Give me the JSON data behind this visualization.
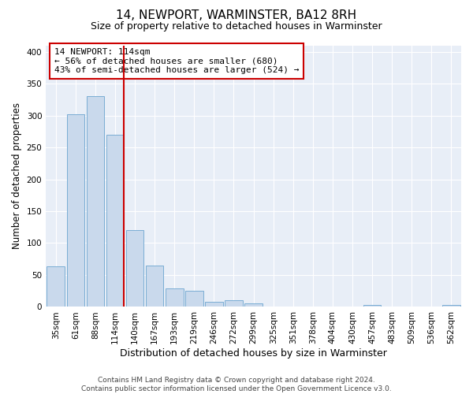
{
  "title": "14, NEWPORT, WARMINSTER, BA12 8RH",
  "subtitle": "Size of property relative to detached houses in Warminster",
  "xlabel": "Distribution of detached houses by size in Warminster",
  "ylabel": "Number of detached properties",
  "bin_labels": [
    "35sqm",
    "61sqm",
    "88sqm",
    "114sqm",
    "140sqm",
    "167sqm",
    "193sqm",
    "219sqm",
    "246sqm",
    "272sqm",
    "299sqm",
    "325sqm",
    "351sqm",
    "378sqm",
    "404sqm",
    "430sqm",
    "457sqm",
    "483sqm",
    "509sqm",
    "536sqm",
    "562sqm"
  ],
  "bar_values": [
    63,
    302,
    330,
    270,
    120,
    65,
    29,
    25,
    8,
    11,
    5,
    0,
    0,
    0,
    0,
    0,
    3,
    0,
    0,
    0,
    3
  ],
  "bar_color": "#c9d9ec",
  "bar_edge_color": "#7aadd4",
  "vline_bin_index": 3,
  "vline_color": "#cc0000",
  "ylim": [
    0,
    410
  ],
  "yticks": [
    0,
    50,
    100,
    150,
    200,
    250,
    300,
    350,
    400
  ],
  "annotation_title": "14 NEWPORT: 114sqm",
  "annotation_line1": "← 56% of detached houses are smaller (680)",
  "annotation_line2": "43% of semi-detached houses are larger (524) →",
  "annotation_box_facecolor": "#ffffff",
  "annotation_box_edgecolor": "#cc0000",
  "figure_facecolor": "#ffffff",
  "axes_facecolor": "#e8eef7",
  "grid_color": "#ffffff",
  "title_fontsize": 11,
  "subtitle_fontsize": 9,
  "xlabel_fontsize": 9,
  "ylabel_fontsize": 8.5,
  "tick_fontsize": 7.5,
  "annotation_fontsize": 8,
  "footer_fontsize": 6.5,
  "footer_line1": "Contains HM Land Registry data © Crown copyright and database right 2024.",
  "footer_line2": "Contains public sector information licensed under the Open Government Licence v3.0."
}
